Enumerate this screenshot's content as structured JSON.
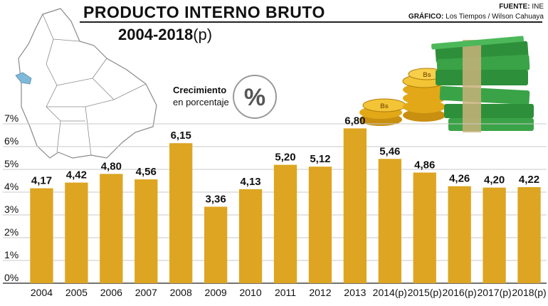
{
  "header": {
    "title": "PRODUCTO INTERNO BRUTO",
    "subtitle": "2004-2018",
    "subtitle_suffix": "(p)",
    "source_label": "FUENTE:",
    "source_value": "INE",
    "graphic_label": "GRÁFICO:",
    "graphic_value": "Los Tiempos / Wilson Cahuaya"
  },
  "annotation": {
    "line1": "Crecimiento",
    "line2": "en porcentaje",
    "symbol": "%"
  },
  "chart_data": {
    "type": "bar",
    "title": "PRODUCTO INTERNO BRUTO",
    "subtitle": "2004-2018(p)",
    "categories": [
      "2004",
      "2005",
      "2006",
      "2007",
      "2008",
      "2009",
      "2010",
      "2011",
      "2012",
      "2013",
      "2014(p)",
      "2015(p)",
      "2016(p)",
      "2017(p)",
      "2018(p)"
    ],
    "values": [
      4.17,
      4.42,
      4.8,
      4.56,
      6.15,
      3.36,
      4.13,
      5.2,
      5.12,
      6.8,
      5.46,
      4.86,
      4.26,
      4.2,
      4.22
    ],
    "value_labels": [
      "4,17",
      "4,42",
      "4,80",
      "4,56",
      "6,15",
      "3,36",
      "4,13",
      "5,20",
      "5,12",
      "6,80",
      "5,46",
      "4,86",
      "4,26",
      "4,20",
      "4,22"
    ],
    "y_ticks": [
      "0%",
      "1%",
      "2%",
      "3%",
      "4%",
      "5%",
      "6%",
      "7%"
    ],
    "ylim": [
      0,
      7
    ],
    "grid": true,
    "colors": {
      "bar": "#DDA521",
      "grid": "#C8C8C8",
      "text": "#111111"
    }
  }
}
